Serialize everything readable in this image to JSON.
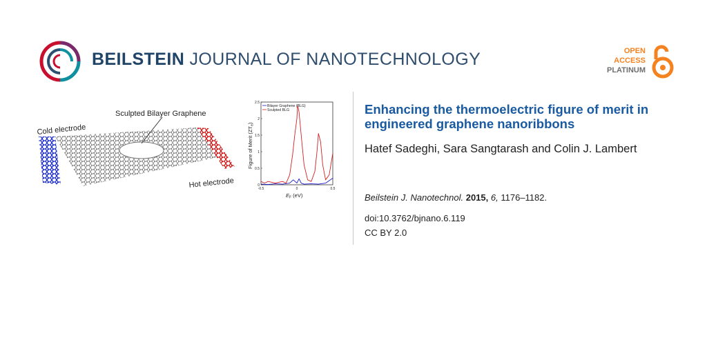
{
  "header": {
    "brand_bold": "BEILSTEIN",
    "brand_rest": " JOURNAL OF NANOTECHNOLOGY",
    "open_access": {
      "line1": "OPEN",
      "line2": "ACCESS",
      "line3": "PLATINUM"
    }
  },
  "illustration": {
    "label_top": "Sculpted Bilayer Graphene",
    "label_cold": "Cold electrode",
    "label_hot": "Hot electrode"
  },
  "graph": {
    "legend": [
      "Bilayer Graphene (BLG)",
      "Sculpted BLG"
    ],
    "ylabel": "Figure of Merit (ZT",
    "ylabel_sub": "e",
    "ylabel_end": ")",
    "xlabel": "E",
    "xlabel_sub": "F",
    "xlabel_unit": " (eV)",
    "yticks": [
      "0",
      "0.5",
      "1",
      "1.5",
      "2",
      "2.5"
    ],
    "xticks": [
      "-0.5",
      "0",
      "0.5"
    ]
  },
  "chart_data": {
    "type": "line",
    "xlabel": "E_F (eV)",
    "ylabel": "Figure of Merit (ZT_e)",
    "xlim": [
      -0.5,
      0.5
    ],
    "ylim": [
      0,
      2.5
    ],
    "series": [
      {
        "name": "Bilayer Graphene (BLG)",
        "color": "#1a1acc",
        "x": [
          -0.5,
          -0.4,
          -0.3,
          -0.2,
          -0.1,
          -0.05,
          0.0,
          0.03,
          0.06,
          0.1,
          0.2,
          0.3,
          0.4,
          0.5
        ],
        "y": [
          0.02,
          0.01,
          0.03,
          0.02,
          0.05,
          0.15,
          0.05,
          0.18,
          0.05,
          0.02,
          0.03,
          0.02,
          0.05,
          0.2
        ]
      },
      {
        "name": "Sculpted BLG",
        "color": "#d42020",
        "x": [
          -0.5,
          -0.45,
          -0.4,
          -0.3,
          -0.2,
          -0.15,
          -0.1,
          -0.06,
          -0.03,
          0.0,
          0.01,
          0.03,
          0.06,
          0.1,
          0.15,
          0.2,
          0.25,
          0.28,
          0.3,
          0.33,
          0.36,
          0.4,
          0.45,
          0.5
        ],
        "y": [
          0.1,
          0.05,
          0.1,
          0.05,
          0.1,
          0.05,
          0.3,
          0.9,
          1.5,
          2.0,
          2.4,
          2.2,
          1.5,
          0.6,
          0.15,
          0.1,
          0.4,
          1.0,
          1.55,
          1.3,
          0.6,
          0.15,
          0.3,
          0.95
        ]
      }
    ]
  },
  "article": {
    "title": "Enhancing the thermoelectric figure of merit in engineered graphene nanoribbons",
    "authors": "Hatef Sadeghi, Sara Sangtarash and Colin J. Lambert",
    "journal": "Beilstein J. Nanotechnol.",
    "year": "2015,",
    "volume": "6,",
    "pages": "1176–1182.",
    "doi": "doi:10.3762/bjnano.6.119",
    "license": "CC BY 2.0"
  },
  "colors": {
    "brand": "#1f4467",
    "title": "#1a5aa1",
    "open_access": "#f58220",
    "logo_red": "#c8102e",
    "logo_teal": "#0f8fa0"
  }
}
